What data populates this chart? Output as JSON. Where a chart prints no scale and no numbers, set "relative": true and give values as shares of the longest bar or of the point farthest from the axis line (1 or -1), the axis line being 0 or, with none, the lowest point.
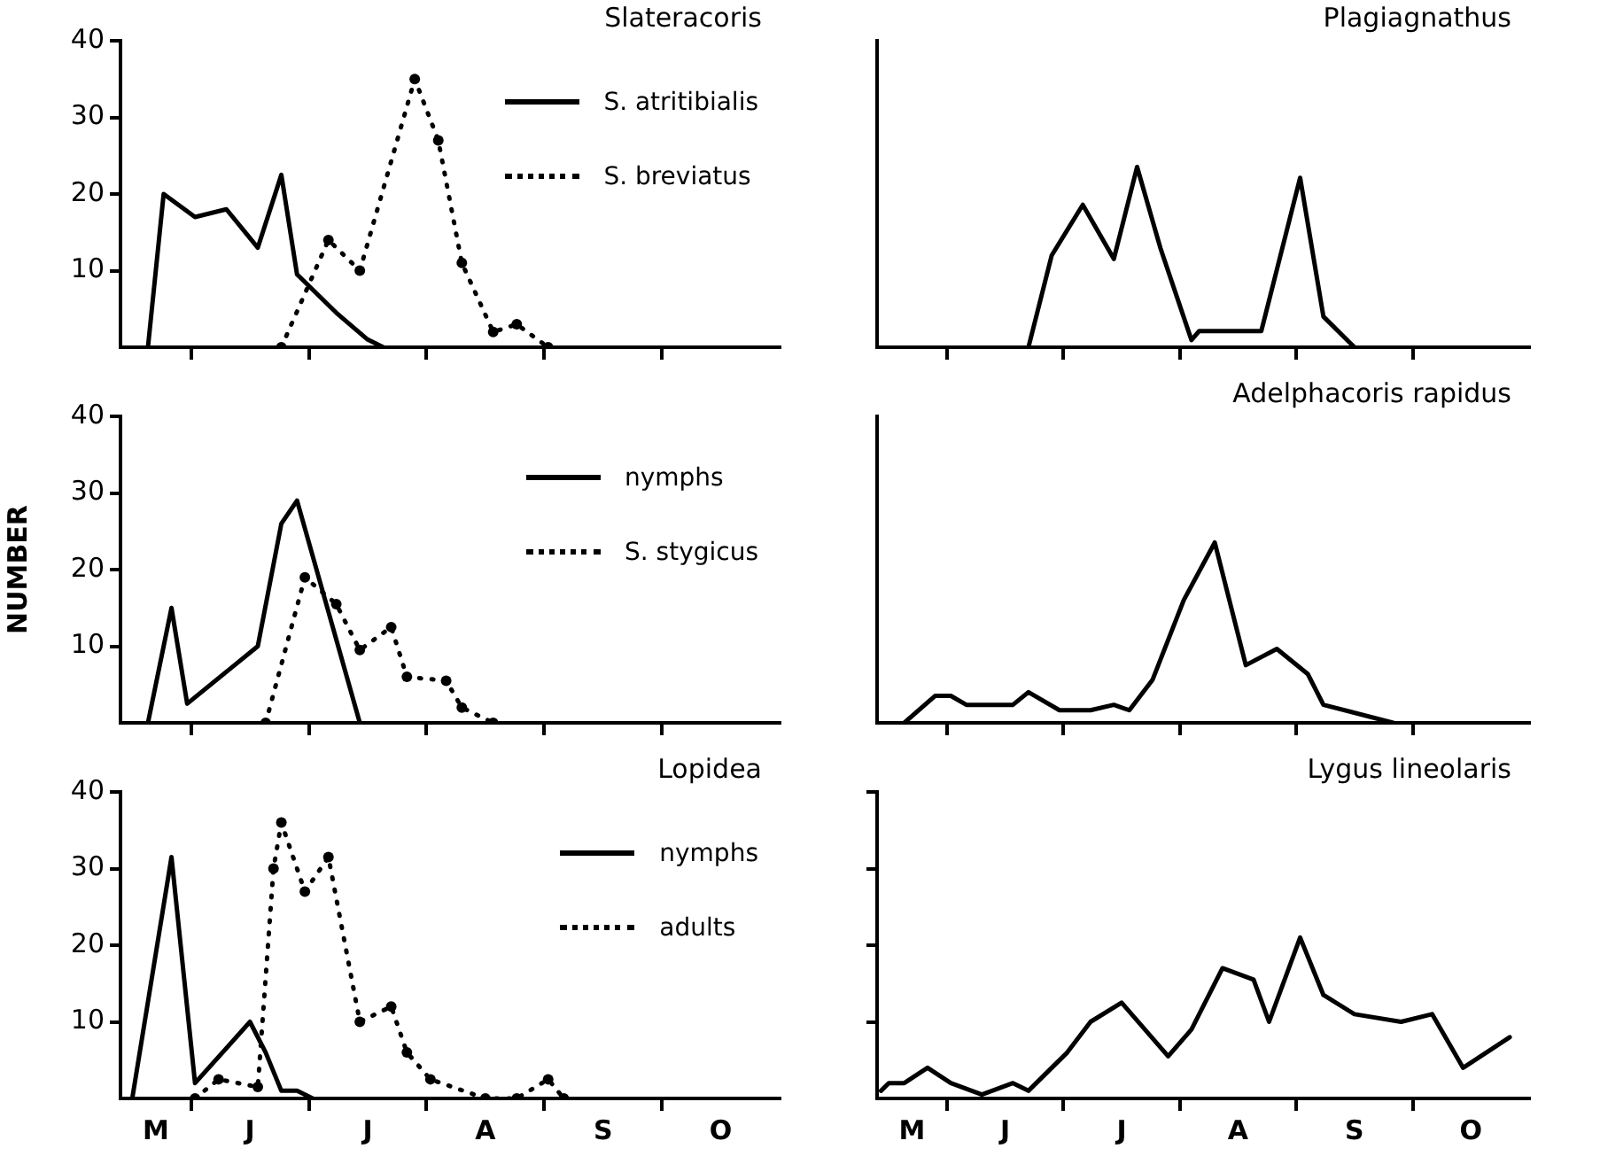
{
  "chart_data": [
    {
      "type": "line",
      "title": "Slateracoris",
      "legend": "top right",
      "grid": false,
      "tick_labels": "y",
      "categories": [
        null,
        null,
        null,
        null,
        null,
        null,
        null,
        null,
        null,
        null,
        null,
        null,
        null,
        null,
        null,
        null,
        null,
        null,
        null,
        null,
        null,
        null,
        null,
        null,
        null,
        null,
        null,
        null,
        null,
        null,
        null,
        null,
        null,
        null,
        null,
        null,
        null,
        null,
        null,
        null,
        null,
        null,
        null,
        null,
        null,
        null,
        null,
        null,
        null,
        null,
        null,
        null,
        null,
        null,
        null,
        null,
        null,
        null,
        null,
        null,
        null,
        null,
        null,
        null,
        null,
        null,
        null,
        null,
        null,
        null,
        null,
        null,
        null,
        null,
        null,
        null,
        null,
        null,
        null,
        null,
        null,
        null,
        null,
        null
      ],
      "ylim": [
        0,
        40
      ],
      "yticks": [
        10,
        20,
        30,
        40
      ],
      "series": [
        {
          "name": "S. atritibialis",
          "color": "#000000",
          "line_style": "solid",
          "marker": "none",
          "values": [
            null,
            null,
            null,
            0,
            null,
            20,
            null,
            null,
            null,
            17,
            null,
            null,
            null,
            18,
            null,
            null,
            null,
            13,
            null,
            null,
            22.5,
            null,
            9.5,
            null,
            null,
            null,
            null,
            4.5,
            null,
            null,
            null,
            1,
            null,
            0,
            null,
            null,
            null,
            null,
            null,
            null,
            null,
            null,
            null,
            null,
            null,
            null,
            null,
            null,
            null,
            null,
            null,
            null,
            null,
            null,
            null,
            null,
            null,
            null,
            null,
            null,
            null,
            null,
            null,
            null,
            null,
            null,
            null,
            null,
            null,
            null,
            null,
            null,
            null,
            null,
            null,
            null,
            null,
            null,
            null,
            null,
            null,
            null,
            null,
            null
          ]
        },
        {
          "name": "S. breviatus",
          "color": "#000000",
          "line_style": "dotted",
          "marker": "circle",
          "values": [
            null,
            null,
            null,
            null,
            null,
            null,
            null,
            null,
            null,
            null,
            null,
            null,
            null,
            null,
            null,
            null,
            null,
            null,
            null,
            null,
            0,
            null,
            null,
            null,
            null,
            null,
            14,
            null,
            null,
            null,
            10,
            null,
            null,
            null,
            null,
            null,
            null,
            35,
            null,
            null,
            27,
            null,
            null,
            11,
            null,
            null,
            null,
            2,
            null,
            null,
            3,
            null,
            null,
            null,
            0,
            null,
            null,
            null,
            null,
            null,
            null,
            null,
            null,
            null,
            null,
            null,
            null,
            null,
            null,
            null,
            null,
            null,
            null,
            null,
            null,
            null,
            null,
            null,
            null,
            null,
            null,
            null,
            null,
            null
          ]
        }
      ]
    },
    {
      "type": "line",
      "title": "Plagiagnathus",
      "relative": true,
      "grid": false,
      "tick_labels": false,
      "categories": [
        null,
        null,
        null,
        null,
        null,
        null,
        null,
        null,
        null,
        null,
        null,
        null,
        null,
        null,
        null,
        null,
        null,
        null,
        null,
        null,
        null,
        null,
        null,
        null,
        null,
        null,
        null,
        null,
        null,
        null,
        null,
        null,
        null,
        null,
        null,
        null,
        null,
        null,
        null,
        null,
        null,
        null,
        null,
        null,
        null,
        null,
        null,
        null,
        null,
        null,
        null,
        null,
        null,
        null,
        null,
        null,
        null,
        null,
        null,
        null,
        null,
        null,
        null,
        null,
        null,
        null,
        null,
        null,
        null,
        null,
        null,
        null,
        null,
        null,
        null,
        null,
        null,
        null,
        null,
        null,
        null,
        null,
        null,
        null
      ],
      "series": [
        {
          "color": "#000000",
          "line_style": "solid",
          "marker": "none",
          "values": [
            null,
            null,
            null,
            null,
            null,
            null,
            null,
            null,
            null,
            null,
            null,
            null,
            null,
            null,
            null,
            null,
            null,
            null,
            null,
            0,
            null,
            null,
            0.51,
            null,
            null,
            null,
            0.79,
            null,
            null,
            null,
            0.49,
            null,
            null,
            1,
            null,
            null,
            0.55,
            null,
            null,
            null,
            0.04,
            0.09,
            null,
            null,
            null,
            null,
            null,
            null,
            null,
            0.09,
            null,
            null,
            null,
            null,
            0.94,
            null,
            null,
            0.17,
            null,
            null,
            null,
            0,
            null,
            null,
            null,
            null,
            null,
            null,
            null,
            null,
            null,
            null,
            null,
            null,
            null,
            null,
            null,
            null,
            null,
            null,
            null,
            null,
            null,
            null
          ]
        }
      ]
    },
    {
      "type": "line",
      "ylabel": "NUMBER",
      "legend": "top right",
      "grid": false,
      "tick_labels": "y",
      "categories": [
        null,
        null,
        null,
        null,
        null,
        null,
        null,
        null,
        null,
        null,
        null,
        null,
        null,
        null,
        null,
        null,
        null,
        null,
        null,
        null,
        null,
        null,
        null,
        null,
        null,
        null,
        null,
        null,
        null,
        null,
        null,
        null,
        null,
        null,
        null,
        null,
        null,
        null,
        null,
        null,
        null,
        null,
        null,
        null,
        null,
        null,
        null,
        null,
        null,
        null,
        null,
        null,
        null,
        null,
        null,
        null,
        null,
        null,
        null,
        null,
        null,
        null,
        null,
        null,
        null,
        null,
        null,
        null,
        null,
        null,
        null,
        null,
        null,
        null,
        null,
        null,
        null,
        null,
        null,
        null,
        null,
        null,
        null,
        null
      ],
      "ylim": [
        0,
        40
      ],
      "yticks": [
        10,
        20,
        30,
        40
      ],
      "series": [
        {
          "name": "nymphs",
          "color": "#000000",
          "line_style": "solid",
          "marker": "none",
          "values": [
            null,
            null,
            null,
            0,
            null,
            null,
            15,
            null,
            2.5,
            null,
            null,
            null,
            null,
            null,
            null,
            null,
            null,
            10,
            null,
            null,
            26,
            null,
            29,
            null,
            null,
            null,
            null,
            null,
            null,
            null,
            0,
            null,
            null,
            null,
            null,
            null,
            null,
            null,
            null,
            null,
            null,
            null,
            null,
            null,
            null,
            null,
            null,
            null,
            null,
            null,
            null,
            null,
            null,
            null,
            null,
            null,
            null,
            null,
            null,
            null,
            null,
            null,
            null,
            null,
            null,
            null,
            null,
            null,
            null,
            null,
            null,
            null,
            null,
            null,
            null,
            null,
            null,
            null,
            null,
            null,
            null,
            null,
            null,
            null
          ]
        },
        {
          "name": "S. stygicus",
          "color": "#000000",
          "line_style": "dotted",
          "marker": "circle",
          "values": [
            null,
            null,
            null,
            null,
            null,
            null,
            null,
            null,
            null,
            null,
            null,
            null,
            null,
            null,
            null,
            null,
            null,
            null,
            0,
            null,
            null,
            null,
            null,
            19,
            null,
            null,
            null,
            15.5,
            null,
            null,
            9.5,
            null,
            null,
            null,
            12.5,
            null,
            6,
            null,
            null,
            null,
            null,
            5.5,
            null,
            2,
            null,
            null,
            null,
            0,
            null,
            null,
            null,
            null,
            null,
            null,
            null,
            null,
            null,
            null,
            null,
            null,
            null,
            null,
            null,
            null,
            null,
            null,
            null,
            null,
            null,
            null,
            null,
            null,
            null,
            null,
            null,
            null,
            null,
            null,
            null,
            null,
            null,
            null,
            null,
            null
          ]
        }
      ]
    },
    {
      "type": "line",
      "title": "Adelphacoris rapidus",
      "relative": true,
      "grid": false,
      "tick_labels": false,
      "categories": [
        null,
        null,
        null,
        null,
        null,
        null,
        null,
        null,
        null,
        null,
        null,
        null,
        null,
        null,
        null,
        null,
        null,
        null,
        null,
        null,
        null,
        null,
        null,
        null,
        null,
        null,
        null,
        null,
        null,
        null,
        null,
        null,
        null,
        null,
        null,
        null,
        null,
        null,
        null,
        null,
        null,
        null,
        null,
        null,
        null,
        null,
        null,
        null,
        null,
        null,
        null,
        null,
        null,
        null,
        null,
        null,
        null,
        null,
        null,
        null,
        null,
        null,
        null,
        null,
        null,
        null,
        null,
        null,
        null,
        null,
        null,
        null,
        null,
        null,
        null,
        null,
        null,
        null,
        null,
        null,
        null,
        null,
        null,
        null
      ],
      "series": [
        {
          "color": "#000000",
          "line_style": "solid",
          "marker": "none",
          "values": [
            null,
            null,
            null,
            0,
            null,
            null,
            null,
            0.15,
            null,
            0.15,
            null,
            0.1,
            null,
            null,
            null,
            null,
            null,
            0.1,
            null,
            0.17,
            null,
            null,
            null,
            0.07,
            null,
            null,
            null,
            0.07,
            null,
            null,
            0.1,
            null,
            0.07,
            null,
            null,
            0.24,
            null,
            null,
            null,
            0.68,
            null,
            null,
            null,
            1,
            null,
            null,
            null,
            0.32,
            null,
            null,
            null,
            0.41,
            null,
            null,
            null,
            0.27,
            null,
            0.1,
            null,
            null,
            null,
            null,
            null,
            null,
            null,
            null,
            0,
            null,
            null,
            null,
            null,
            null,
            null,
            null,
            null,
            null,
            null,
            null,
            null,
            null,
            null,
            null,
            null,
            null
          ]
        }
      ]
    },
    {
      "type": "line",
      "title": "Lopidea",
      "legend": "top right",
      "grid": false,
      "categories": [
        null,
        null,
        null,
        null,
        "M",
        null,
        null,
        null,
        null,
        null,
        null,
        null,
        null,
        null,
        null,
        null,
        "J",
        null,
        null,
        null,
        null,
        null,
        null,
        null,
        null,
        null,
        null,
        null,
        null,
        null,
        null,
        "J",
        null,
        null,
        null,
        null,
        null,
        null,
        null,
        null,
        null,
        null,
        null,
        null,
        null,
        null,
        "A",
        null,
        null,
        null,
        null,
        null,
        null,
        null,
        null,
        null,
        null,
        null,
        null,
        null,
        null,
        "S",
        null,
        null,
        null,
        null,
        null,
        null,
        null,
        null,
        null,
        null,
        null,
        null,
        null,
        null,
        "O",
        null,
        null,
        null,
        null,
        null,
        null,
        null
      ],
      "ylim": [
        0,
        40
      ],
      "yticks": [
        10,
        20,
        30,
        40
      ],
      "series": [
        {
          "name": "nymphs",
          "color": "#000000",
          "line_style": "solid",
          "marker": "none",
          "values": [
            null,
            0,
            null,
            null,
            null,
            null,
            31.5,
            null,
            null,
            2,
            null,
            null,
            null,
            null,
            null,
            null,
            10,
            null,
            6,
            null,
            1,
            null,
            1,
            null,
            0,
            null,
            null,
            null,
            null,
            null,
            null,
            null,
            null,
            null,
            null,
            null,
            null,
            null,
            null,
            null,
            null,
            null,
            null,
            null,
            null,
            null,
            null,
            null,
            null,
            null,
            null,
            null,
            null,
            null,
            null,
            null,
            null,
            null,
            null,
            null,
            null,
            null,
            null,
            null,
            null,
            null,
            null,
            null,
            null,
            null,
            null,
            null,
            null,
            null,
            null,
            null,
            null,
            null,
            null,
            null,
            null,
            null,
            null,
            null
          ]
        },
        {
          "name": "adults",
          "color": "#000000",
          "line_style": "dotted",
          "marker": "circle",
          "values": [
            null,
            null,
            null,
            null,
            null,
            null,
            null,
            null,
            null,
            0,
            null,
            null,
            2.5,
            null,
            null,
            null,
            null,
            1.5,
            null,
            30,
            36,
            null,
            null,
            27,
            null,
            null,
            31.5,
            null,
            null,
            null,
            10,
            null,
            null,
            null,
            12,
            null,
            6,
            null,
            null,
            2.5,
            null,
            null,
            null,
            null,
            null,
            null,
            0,
            null,
            null,
            null,
            0,
            null,
            null,
            null,
            2.5,
            null,
            0,
            null,
            null,
            null,
            null,
            null,
            null,
            null,
            null,
            null,
            null,
            null,
            null,
            null,
            null,
            null,
            null,
            null,
            null,
            null,
            null,
            null,
            null,
            null,
            null,
            null,
            null,
            null
          ]
        }
      ]
    },
    {
      "type": "line",
      "title": "Lygus lineolaris",
      "grid": false,
      "tick_labels": "x",
      "categories": [
        null,
        null,
        null,
        null,
        "M",
        null,
        null,
        null,
        null,
        null,
        null,
        null,
        null,
        null,
        null,
        null,
        "J",
        null,
        null,
        null,
        null,
        null,
        null,
        null,
        null,
        null,
        null,
        null,
        null,
        null,
        null,
        "J",
        null,
        null,
        null,
        null,
        null,
        null,
        null,
        null,
        null,
        null,
        null,
        null,
        null,
        null,
        "A",
        null,
        null,
        null,
        null,
        null,
        null,
        null,
        null,
        null,
        null,
        null,
        null,
        null,
        null,
        "S",
        null,
        null,
        null,
        null,
        null,
        null,
        null,
        null,
        null,
        null,
        null,
        null,
        null,
        null,
        "O",
        null,
        null,
        null,
        null,
        null,
        null,
        null
      ],
      "ylim": [
        0,
        40
      ],
      "yticks": [
        10,
        20,
        30,
        40
      ],
      "series": [
        {
          "color": "#000000",
          "line_style": "solid",
          "marker": "none",
          "values": [
            1,
            2,
            null,
            2,
            null,
            null,
            4,
            null,
            null,
            2,
            null,
            null,
            null,
            0.5,
            null,
            null,
            null,
            2,
            null,
            1,
            null,
            null,
            4,
            null,
            6,
            null,
            null,
            10,
            null,
            null,
            null,
            12.5,
            null,
            null,
            null,
            null,
            null,
            5.5,
            null,
            null,
            9,
            null,
            null,
            null,
            17,
            null,
            null,
            null,
            15.5,
            null,
            10,
            null,
            null,
            null,
            21,
            null,
            null,
            13.5,
            null,
            null,
            null,
            11,
            null,
            null,
            null,
            null,
            null,
            10,
            null,
            null,
            null,
            11,
            null,
            null,
            null,
            4,
            null,
            null,
            null,
            null,
            null,
            8,
            null,
            null
          ]
        }
      ]
    }
  ]
}
